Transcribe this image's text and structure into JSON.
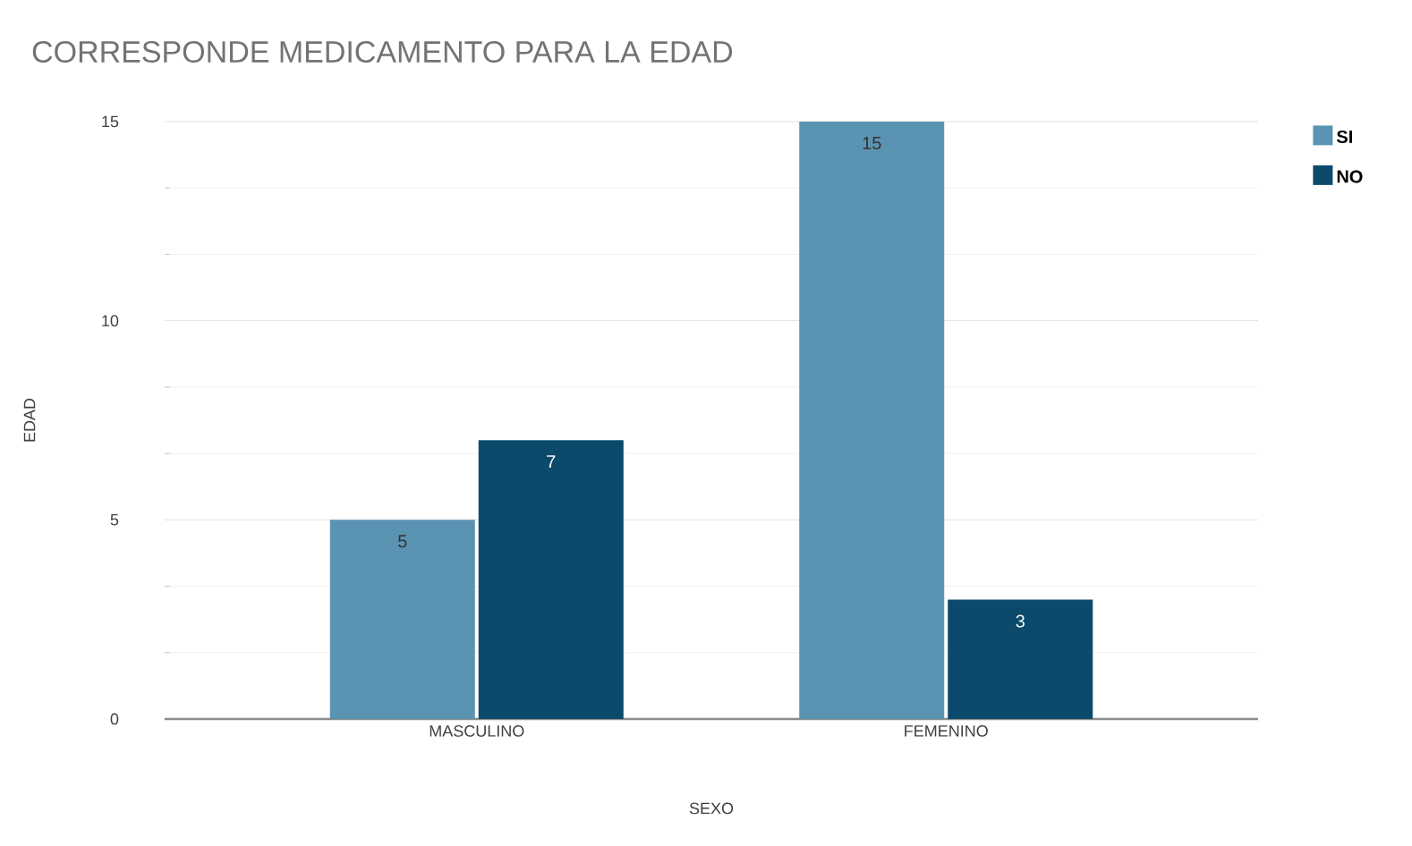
{
  "chart_data": {
    "type": "bar",
    "title": "CORRESPONDE MEDICAMENTO PARA LA EDAD",
    "xlabel": "SEXO",
    "ylabel": "EDAD",
    "categories": [
      "MASCULINO",
      "FEMENINO"
    ],
    "series": [
      {
        "name": "SI",
        "color": "#5b93b3",
        "values": [
          5,
          15
        ]
      },
      {
        "name": "NO",
        "color": "#0b4a6b",
        "values": [
          7,
          3
        ]
      }
    ],
    "ylim": [
      0,
      15
    ],
    "yticks": [
      0,
      5,
      10,
      15
    ],
    "grid": "y",
    "legend": "top right",
    "data_labels": true
  }
}
